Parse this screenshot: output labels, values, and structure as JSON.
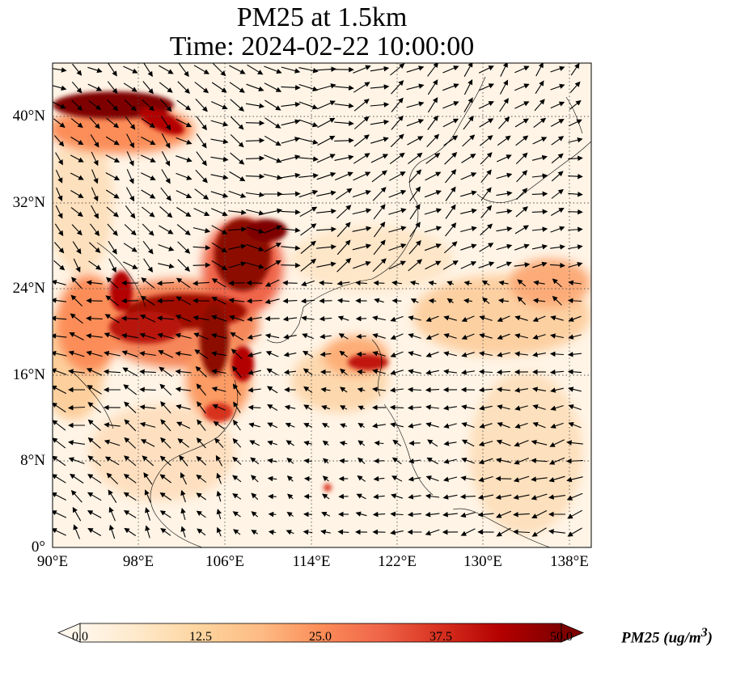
{
  "title": {
    "line1": "PM25 at 1.5km",
    "line2": "Time: 2024-02-22 10:00:00"
  },
  "map": {
    "projection": "PlateCarree",
    "lon_range": [
      90,
      139
    ],
    "lat_range": [
      0,
      45
    ],
    "gridlines": "dotted",
    "lat_ticks": [
      "40°N",
      "32°N",
      "24°N",
      "16°N",
      "8°N",
      "0°"
    ],
    "lon_ticks": [
      "90°E",
      "98°E",
      "106°E",
      "114°E",
      "122°E",
      "130°E",
      "138°E"
    ],
    "field": "PM25",
    "overlay": "wind vectors (black arrows)"
  },
  "colorbar": {
    "title": "PM25 (ug/m",
    "title_sup": "3",
    "title_end": ")",
    "min": 0,
    "max": 50,
    "ticks": [
      "0.0",
      "12.5",
      "25.0",
      "37.5",
      "50.0"
    ],
    "colormap": "OrRd",
    "extend": "both",
    "colors": [
      "#fff7ec",
      "#fee8c8",
      "#fdd49e",
      "#fdbb84",
      "#fc8d59",
      "#ef6548",
      "#d7301f",
      "#b30000",
      "#7f0000"
    ]
  }
}
